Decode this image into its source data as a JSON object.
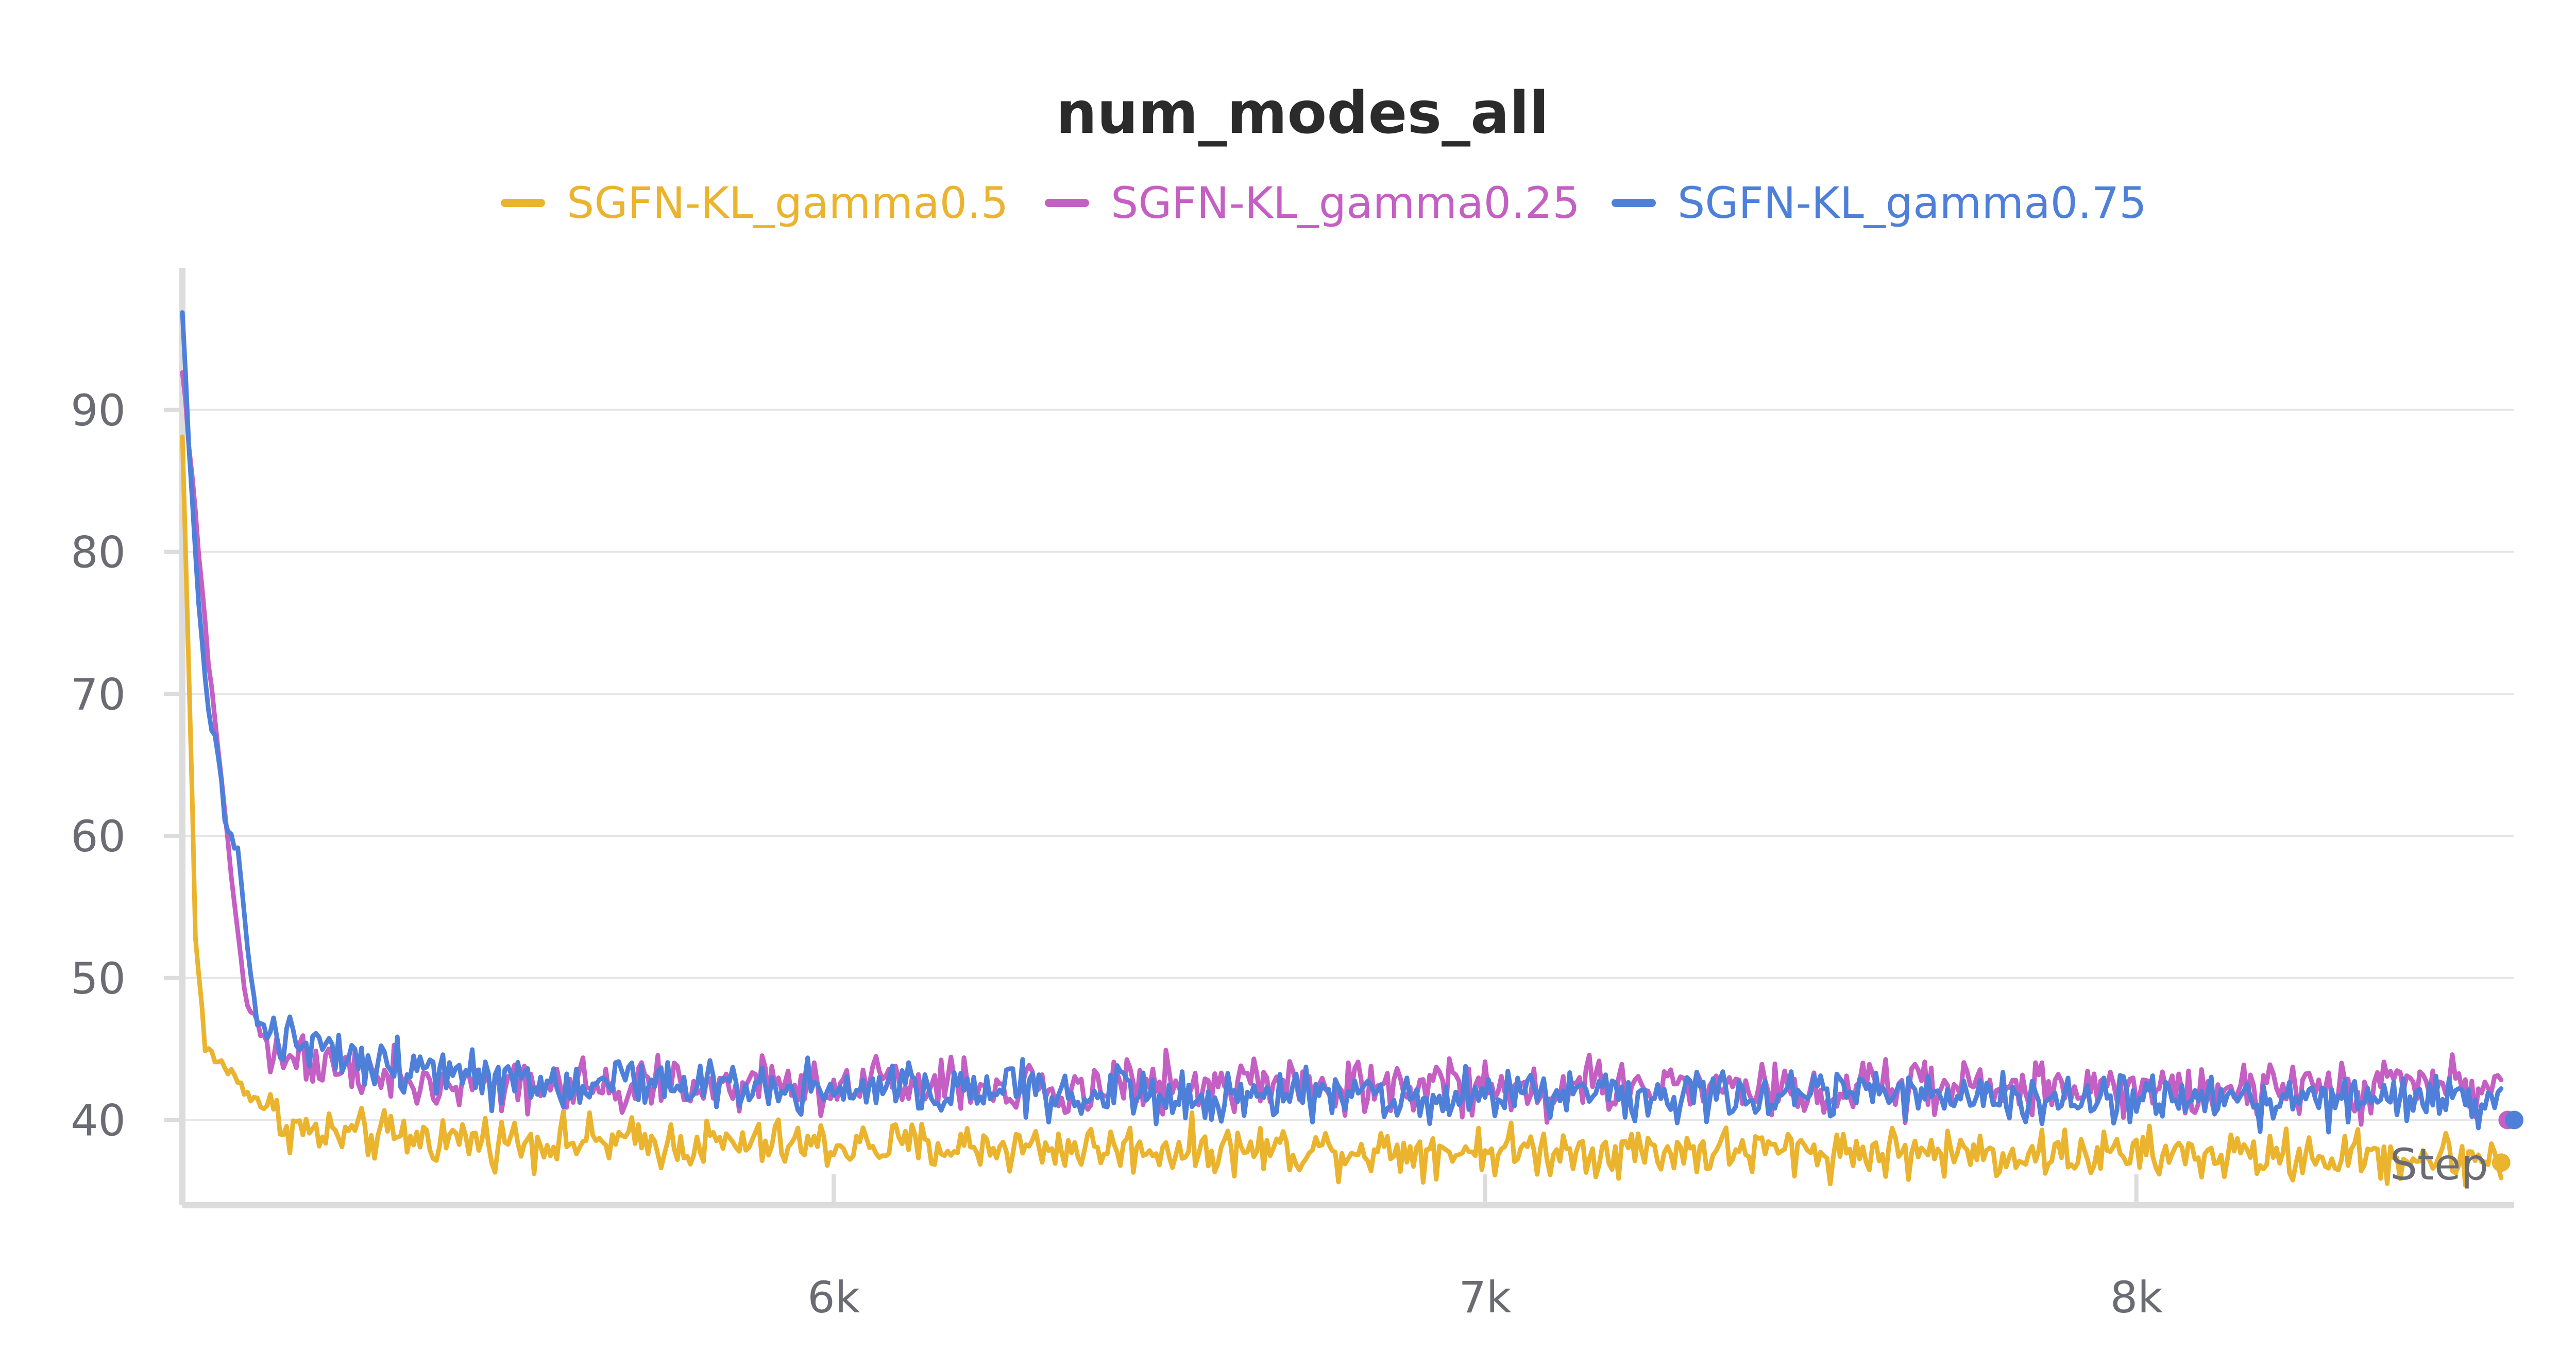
{
  "chart_data": {
    "type": "line",
    "title": "num_modes_all",
    "xlabel": "Step",
    "ylabel": "",
    "xlim": [
      5000,
      8580
    ],
    "ylim": [
      34,
      100
    ],
    "x_ticks": [
      {
        "value": 6000,
        "label": "6k"
      },
      {
        "value": 7000,
        "label": "7k"
      },
      {
        "value": 8000,
        "label": "8k"
      }
    ],
    "y_ticks": [
      {
        "value": 40,
        "label": "40"
      },
      {
        "value": 50,
        "label": "50"
      },
      {
        "value": 60,
        "label": "60"
      },
      {
        "value": 70,
        "label": "70"
      },
      {
        "value": 80,
        "label": "80"
      },
      {
        "value": 90,
        "label": "90"
      }
    ],
    "grid": true,
    "legend_position": "top-center",
    "x_step": 5,
    "series": [
      {
        "name": "SGFN-KL_gamma0.5",
        "color": "#ebb42f",
        "profile": [
          [
            5000,
            88
          ],
          [
            5010,
            72
          ],
          [
            5020,
            53
          ],
          [
            5035,
            45
          ],
          [
            5060,
            44
          ],
          [
            5100,
            42
          ],
          [
            5150,
            40
          ],
          [
            5200,
            39
          ],
          [
            5400,
            38.7
          ],
          [
            5800,
            38.3
          ],
          [
            6500,
            38
          ],
          [
            7500,
            37.8
          ],
          [
            8560,
            37.3
          ]
        ],
        "noise": 2.6,
        "end_marker": [
          8560,
          37
        ]
      },
      {
        "name": "SGFN-KL_gamma0.25",
        "color": "#c45fc4",
        "profile": [
          [
            5000,
            92
          ],
          [
            5010,
            88
          ],
          [
            5025,
            80
          ],
          [
            5040,
            72
          ],
          [
            5060,
            64
          ],
          [
            5080,
            55
          ],
          [
            5100,
            48
          ],
          [
            5130,
            45.5
          ],
          [
            5200,
            44
          ],
          [
            5300,
            43
          ],
          [
            5500,
            42.6
          ],
          [
            6500,
            42.4
          ],
          [
            7500,
            42.3
          ],
          [
            8560,
            42.2
          ]
        ],
        "noise": 2.8,
        "end_marker": [
          8570,
          40
        ]
      },
      {
        "name": "SGFN-KL_gamma0.75",
        "color": "#4e80da",
        "profile": [
          [
            5000,
            97
          ],
          [
            5010,
            88
          ],
          [
            5025,
            76
          ],
          [
            5040,
            69
          ],
          [
            5055,
            66
          ],
          [
            5065,
            61
          ],
          [
            5085,
            59
          ],
          [
            5100,
            52
          ],
          [
            5115,
            47
          ],
          [
            5130,
            46
          ],
          [
            5200,
            45.2
          ],
          [
            5300,
            44
          ],
          [
            5500,
            42.6
          ],
          [
            6500,
            41.8
          ],
          [
            7500,
            41.7
          ],
          [
            8560,
            41.4
          ]
        ],
        "noise": 2.6,
        "end_marker": [
          8580,
          40
        ]
      }
    ]
  }
}
